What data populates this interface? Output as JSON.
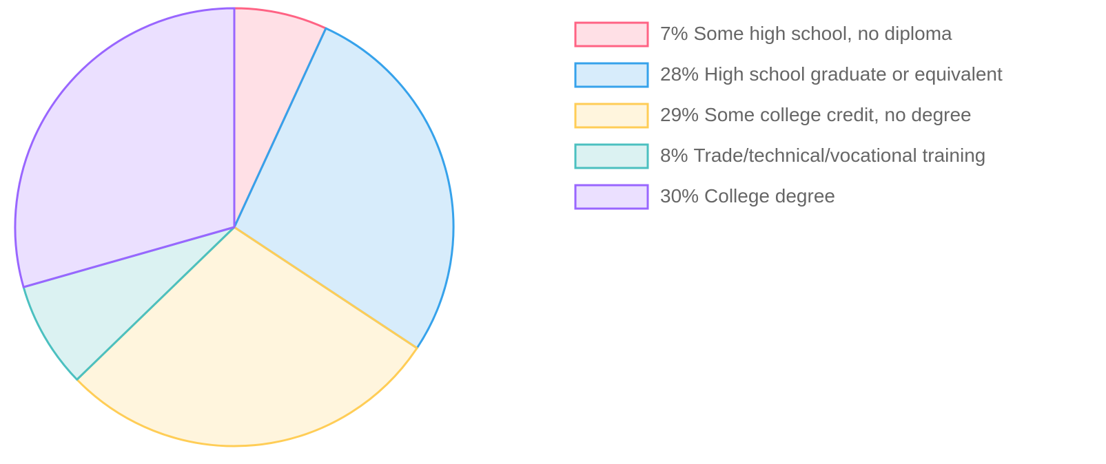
{
  "chart_data": {
    "type": "pie",
    "categories": [
      "Some high school, no diploma",
      "High school graduate or equivalent",
      "Some college credit, no degree",
      "Trade/technical/vocational training",
      "College degree"
    ],
    "values": [
      7,
      28,
      29,
      8,
      30
    ],
    "value_labels": [
      "7%",
      "28%",
      "29%",
      "8%",
      "30%"
    ],
    "colors": [
      "rgba(255,99,132,0.2)",
      "rgba(54,162,235,0.2)",
      "rgba(255,205,86,0.2)",
      "rgba(75,192,192,0.2)",
      "rgba(153,102,255,0.2)"
    ],
    "border_colors": [
      "rgb(255,99,132)",
      "rgb(54,162,235)",
      "rgb(255,205,86)",
      "rgb(75,192,192)",
      "rgb(153,102,255)"
    ],
    "legend": "right"
  }
}
